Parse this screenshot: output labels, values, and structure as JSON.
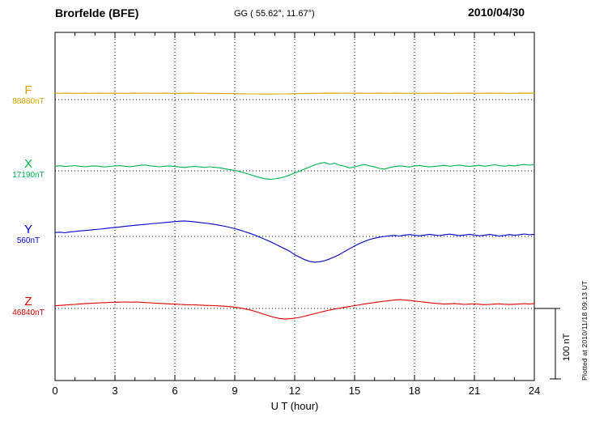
{
  "header": {
    "station": "Brorfelde (BFE)",
    "coords": "GG ( 55.62°,  11.67°)",
    "date": "2010/04/30"
  },
  "footer_note": "Plotted at 2010/11/18 09:13 UT",
  "chart_data": {
    "type": "line",
    "title": "Brorfelde (BFE)",
    "subtitle": "GG ( 55.62°,  11.67°)",
    "date": "2010/04/30",
    "xlabel": "U T (hour)",
    "x_range": [
      0,
      24
    ],
    "xticks": [
      0,
      3,
      6,
      9,
      12,
      15,
      18,
      21,
      24
    ],
    "grid": "dotted vertical at 3h intervals, dotted horizontal baseline per trace",
    "scale_bar": {
      "label": "100 nT",
      "value_nT": 100
    },
    "series": [
      {
        "name": "F",
        "base": "88880nT",
        "color": "#d9a600",
        "offsets_nT": [
          9.0,
          8.9,
          9.1,
          9.0,
          8.9,
          9.0,
          9.1,
          8.9,
          9.0,
          9.1,
          8.9,
          9.0,
          9.1,
          9.0,
          8.9,
          9.0,
          9.1,
          9.0,
          9.2,
          9.0,
          8.9,
          9.0,
          9.1,
          9.0,
          8.9,
          9.0,
          8.9,
          9.1,
          9.0,
          8.9,
          9.0,
          8.9,
          8.8,
          8.7,
          8.6,
          8.5,
          8.4,
          8.3,
          8.2,
          8.1,
          8.0,
          7.9,
          7.8,
          7.8,
          7.9,
          8.0,
          8.1,
          8.2,
          8.4,
          8.5,
          8.7,
          8.8,
          8.9,
          9.0,
          9.1,
          9.0,
          9.1,
          9.0,
          9.2,
          9.1,
          9.0,
          9.1,
          9.0,
          8.9,
          9.0,
          9.1,
          9.0,
          8.9,
          9.1,
          9.0,
          8.9,
          9.0,
          9.1,
          9.0,
          8.9,
          9.0,
          9.0,
          9.1,
          9.0,
          8.9,
          9.0,
          9.1,
          9.0,
          9.1,
          9.0,
          8.9,
          9.0,
          9.1,
          9.0,
          9.1,
          9.0,
          8.9,
          9.0,
          9.1,
          9.0,
          9.1,
          9.0
        ]
      },
      {
        "name": "X",
        "base": "17190nT",
        "color": "#00b44b",
        "offsets_nT": [
          6.5,
          7.2,
          6.1,
          6.8,
          7.5,
          6.4,
          5.8,
          6.6,
          7.0,
          6.2,
          5.5,
          6.3,
          6.9,
          7.4,
          6.6,
          5.9,
          6.7,
          7.8,
          8.3,
          7.1,
          6.4,
          5.7,
          6.5,
          7.0,
          6.2,
          5.4,
          4.8,
          5.6,
          6.3,
          5.5,
          4.9,
          5.7,
          5.0,
          4.2,
          3.0,
          1.8,
          0.5,
          -1.0,
          -3.0,
          -5.2,
          -7.5,
          -9.5,
          -11.2,
          -12.0,
          -11.5,
          -10.2,
          -8.5,
          -6.0,
          -3.0,
          -0.5,
          2.5,
          5.5,
          8.5,
          10.5,
          11.8,
          9.2,
          10.8,
          8.0,
          6.5,
          4.0,
          5.5,
          7.5,
          9.0,
          7.0,
          5.5,
          3.5,
          2.5,
          4.5,
          6.0,
          7.0,
          6.2,
          5.4,
          6.8,
          7.6,
          6.4,
          5.6,
          6.2,
          7.0,
          7.8,
          6.6,
          7.4,
          8.2,
          7.0,
          6.2,
          7.0,
          7.8,
          6.6,
          7.4,
          8.6,
          7.4,
          6.6,
          7.8,
          7.0,
          8.2,
          9.0,
          8.2,
          8.8
        ]
      },
      {
        "name": "Y",
        "base": "560nT",
        "color": "#0000cc",
        "offsets_nT": [
          5.5,
          6.0,
          5.2,
          6.4,
          7.0,
          7.8,
          8.4,
          9.0,
          9.8,
          10.4,
          11.2,
          12.0,
          12.8,
          13.4,
          14.2,
          15.0,
          15.8,
          16.4,
          17.0,
          17.8,
          18.4,
          19.0,
          19.8,
          20.4,
          21.0,
          21.6,
          22.0,
          21.4,
          20.6,
          19.8,
          19.0,
          18.0,
          17.0,
          15.8,
          14.4,
          12.8,
          11.0,
          9.0,
          6.8,
          4.4,
          1.8,
          -1.0,
          -4.0,
          -7.2,
          -10.5,
          -14.0,
          -17.5,
          -21.0,
          -26.0,
          -29.5,
          -33.0,
          -35.5,
          -36.5,
          -36.0,
          -34.5,
          -32.0,
          -29.0,
          -25.5,
          -21.5,
          -17.5,
          -13.5,
          -10.0,
          -7.0,
          -4.5,
          -2.5,
          -1.0,
          0.0,
          0.8,
          1.4,
          0.6,
          1.8,
          2.6,
          1.6,
          0.8,
          1.8,
          3.0,
          2.0,
          1.2,
          2.4,
          3.2,
          2.2,
          1.0,
          2.0,
          3.0,
          2.0,
          0.8,
          1.6,
          2.8,
          1.8,
          0.6,
          1.4,
          2.6,
          1.6,
          2.4,
          3.4,
          2.4,
          3.0
        ]
      },
      {
        "name": "Z",
        "base": "46840nT",
        "color": "#dd0000",
        "offsets_nT": [
          4.0,
          4.4,
          4.8,
          5.4,
          5.8,
          6.4,
          6.8,
          7.2,
          7.6,
          8.0,
          8.2,
          8.6,
          8.8,
          9.0,
          9.2,
          9.0,
          9.2,
          8.8,
          8.4,
          8.0,
          7.6,
          7.2,
          6.8,
          6.4,
          6.2,
          5.8,
          5.4,
          5.2,
          5.0,
          4.8,
          4.4,
          4.2,
          4.0,
          3.6,
          3.2,
          2.6,
          1.8,
          0.8,
          -0.5,
          -2.0,
          -4.0,
          -6.2,
          -8.5,
          -10.8,
          -12.8,
          -14.2,
          -15.0,
          -14.6,
          -13.8,
          -12.6,
          -11.0,
          -9.2,
          -7.4,
          -5.6,
          -3.8,
          -2.2,
          -0.8,
          0.4,
          1.6,
          2.8,
          4.0,
          5.2,
          6.4,
          7.4,
          8.4,
          9.4,
          10.4,
          11.2,
          12.0,
          12.4,
          12.0,
          11.4,
          10.6,
          9.8,
          9.0,
          8.2,
          7.4,
          6.8,
          6.2,
          6.6,
          7.0,
          6.4,
          5.8,
          6.2,
          6.6,
          6.0,
          5.4,
          5.8,
          6.2,
          6.6,
          6.0,
          5.6,
          6.0,
          6.4,
          6.8,
          6.4,
          6.8
        ]
      }
    ]
  }
}
